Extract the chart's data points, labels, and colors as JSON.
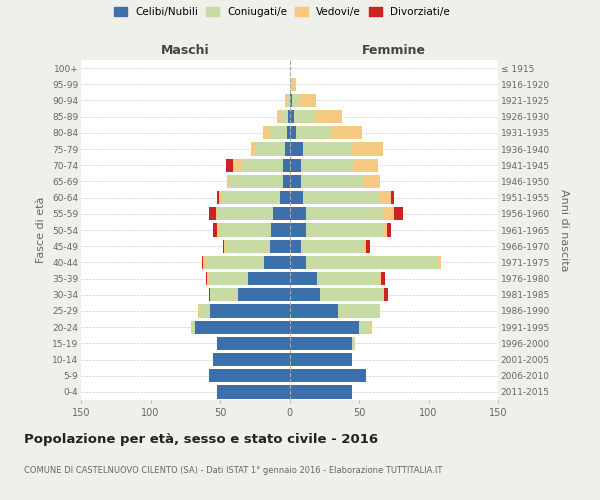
{
  "age_groups": [
    "0-4",
    "5-9",
    "10-14",
    "15-19",
    "20-24",
    "25-29",
    "30-34",
    "35-39",
    "40-44",
    "45-49",
    "50-54",
    "55-59",
    "60-64",
    "65-69",
    "70-74",
    "75-79",
    "80-84",
    "85-89",
    "90-94",
    "95-99",
    "100+"
  ],
  "birth_years": [
    "2011-2015",
    "2006-2010",
    "2001-2005",
    "1996-2000",
    "1991-1995",
    "1986-1990",
    "1981-1985",
    "1976-1980",
    "1971-1975",
    "1966-1970",
    "1961-1965",
    "1956-1960",
    "1951-1955",
    "1946-1950",
    "1941-1945",
    "1936-1940",
    "1931-1935",
    "1926-1930",
    "1921-1925",
    "1916-1920",
    "≤ 1915"
  ],
  "maschi": {
    "celibe": [
      52,
      58,
      55,
      52,
      68,
      57,
      37,
      30,
      18,
      14,
      13,
      12,
      7,
      5,
      5,
      3,
      2,
      1,
      0,
      0,
      0
    ],
    "coniugato": [
      0,
      0,
      0,
      0,
      3,
      8,
      20,
      28,
      42,
      32,
      38,
      40,
      42,
      38,
      30,
      22,
      12,
      5,
      2,
      0,
      0
    ],
    "vedovo": [
      0,
      0,
      0,
      0,
      0,
      1,
      0,
      1,
      2,
      1,
      1,
      1,
      2,
      2,
      6,
      3,
      5,
      3,
      1,
      0,
      0
    ],
    "divorziato": [
      0,
      0,
      0,
      0,
      0,
      0,
      1,
      1,
      1,
      1,
      3,
      5,
      1,
      0,
      5,
      0,
      0,
      0,
      0,
      0,
      0
    ]
  },
  "femmine": {
    "nubile": [
      45,
      55,
      45,
      45,
      50,
      35,
      22,
      20,
      12,
      8,
      12,
      12,
      10,
      8,
      8,
      10,
      5,
      3,
      2,
      0,
      0
    ],
    "coniugata": [
      0,
      0,
      0,
      2,
      8,
      30,
      45,
      45,
      95,
      45,
      55,
      55,
      55,
      45,
      38,
      35,
      25,
      15,
      5,
      2,
      0
    ],
    "vedova": [
      0,
      0,
      0,
      0,
      1,
      0,
      1,
      1,
      2,
      2,
      3,
      8,
      8,
      12,
      18,
      22,
      22,
      20,
      12,
      3,
      0
    ],
    "divorziata": [
      0,
      0,
      0,
      0,
      0,
      0,
      3,
      3,
      0,
      3,
      3,
      7,
      2,
      0,
      0,
      0,
      0,
      0,
      0,
      0,
      0
    ]
  },
  "colors": {
    "celibe": "#3d6faa",
    "coniugato": "#c8dba4",
    "vedovo": "#f5c97f",
    "divorziato": "#cc2222"
  },
  "title_main": "Popolazione per età, sesso e stato civile - 2016",
  "title_sub": "COMUNE DI CASTELNUOVO CILENTO (SA) - Dati ISTAT 1° gennaio 2016 - Elaborazione TUTTITALIA.IT",
  "ylabel_left": "Fasce di età",
  "ylabel_right": "Anni di nascita",
  "xlabel_left": "Maschi",
  "xlabel_right": "Femmine",
  "xlim": 150,
  "bg_color": "#f0f0eb",
  "plot_bg": "#ffffff"
}
